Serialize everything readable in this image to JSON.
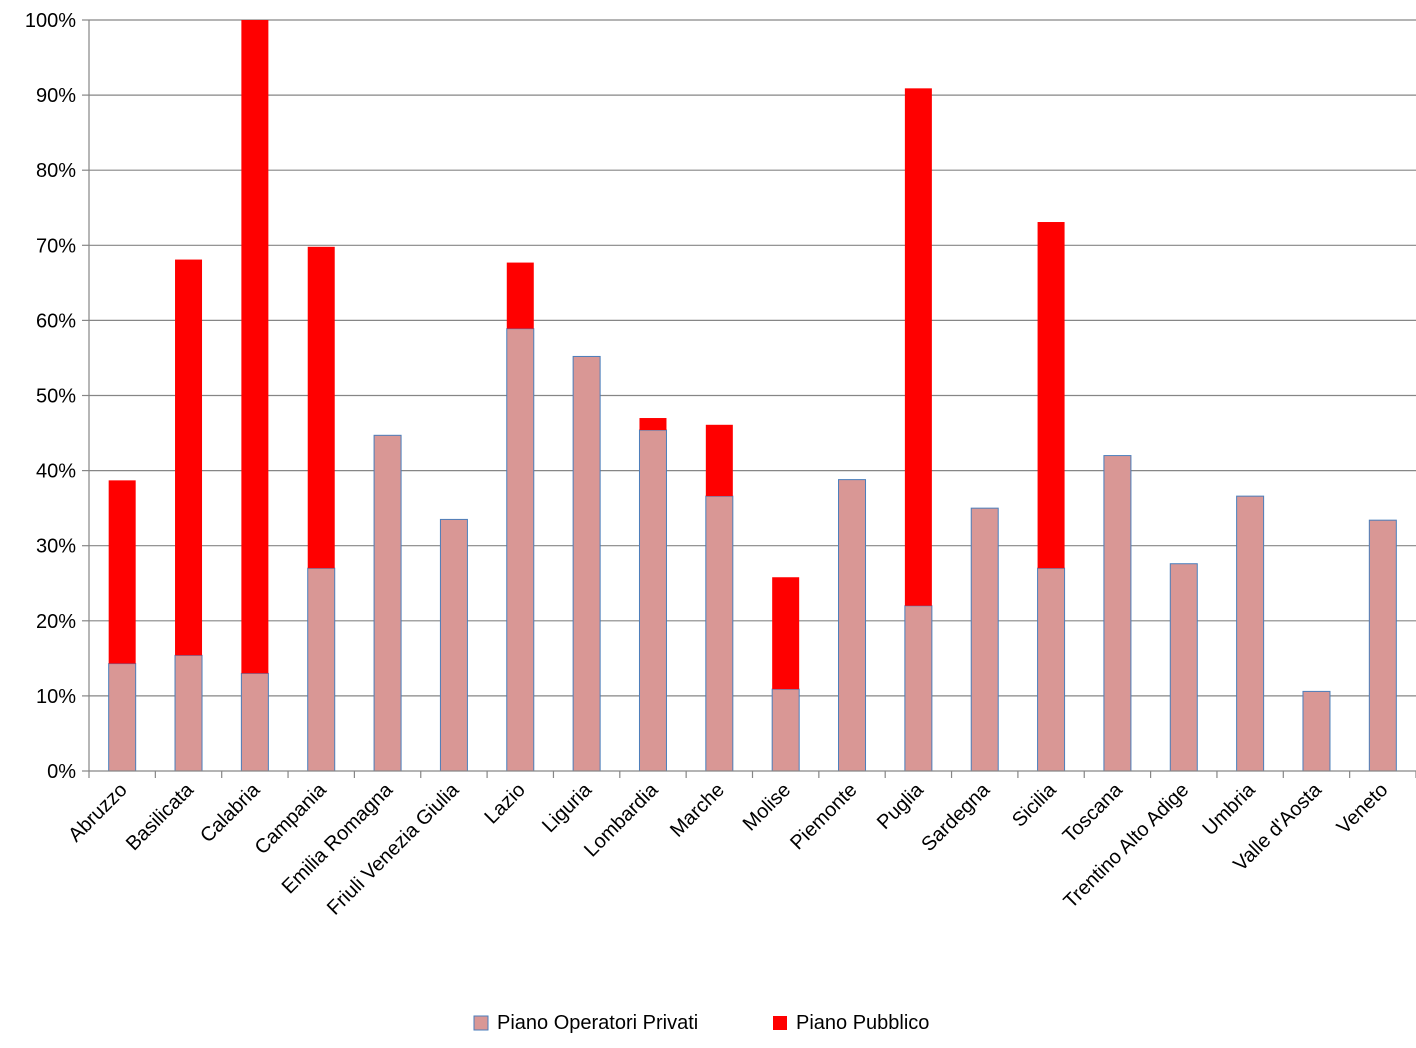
{
  "chart_data": {
    "type": "bar",
    "stacked": true,
    "categories": [
      "Abruzzo",
      "Basilicata",
      "Calabria",
      "Campania",
      "Emilia Romagna",
      "Friuli Venezia Giulia",
      "Lazio",
      "Liguria",
      "Lombardia",
      "Marche",
      "Molise",
      "Piemonte",
      "Puglia",
      "Sardegna",
      "Sicilia",
      "Toscana",
      "Trentino Alto Adige",
      "Umbria",
      "Valle d'Aosta",
      "Veneto"
    ],
    "series": [
      {
        "name": "Piano Operatori Privati",
        "color": "#d99795",
        "values": [
          14.3,
          15.4,
          13.0,
          27.0,
          44.7,
          33.5,
          58.9,
          55.2,
          45.4,
          36.6,
          10.9,
          38.8,
          22.0,
          35.0,
          27.0,
          42.0,
          27.6,
          36.6,
          10.6,
          33.4
        ]
      },
      {
        "name": "Piano Pubblico",
        "color": "#ff0000",
        "values": [
          24.4,
          52.7,
          87.0,
          42.8,
          0,
          0,
          8.8,
          0,
          1.6,
          9.5,
          14.9,
          0,
          68.9,
          0,
          46.1,
          0,
          0,
          0,
          0,
          0
        ]
      }
    ],
    "ylim": [
      0,
      100
    ],
    "yticks": [
      "0%",
      "10%",
      "20%",
      "30%",
      "40%",
      "50%",
      "60%",
      "70%",
      "80%",
      "90%",
      "100%"
    ],
    "grid": true,
    "legend_position": "bottom",
    "title": "",
    "xlabel": "",
    "ylabel": ""
  }
}
